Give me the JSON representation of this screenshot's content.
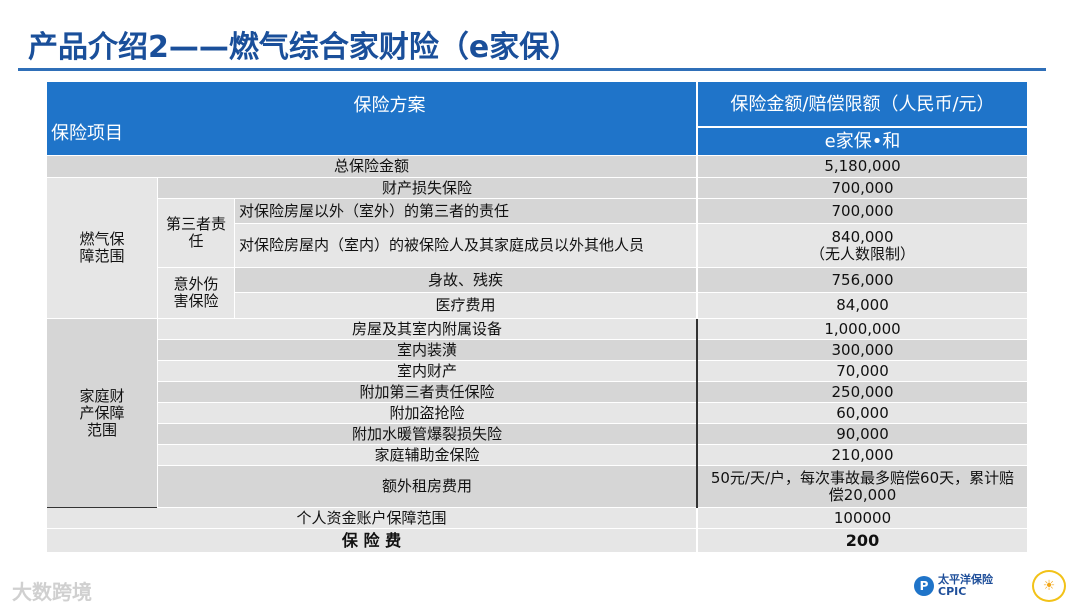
{
  "title": "产品介绍2——燃气综合家财险（e家保）",
  "header": {
    "plan": "保险方案",
    "item": "保险项目",
    "amount": "保险金额/赔偿限额（人民币/元）",
    "product": "e家保•和"
  },
  "total": {
    "label": "总保险金额",
    "value": "5,180,000"
  },
  "gas_section": {
    "label": "燃气保障范围",
    "property_loss": {
      "label": "财产损失保险",
      "value": "700,000"
    },
    "third_party": {
      "label": "第三者责任",
      "outdoor": {
        "label": "对保险房屋以外（室外）的第三者的责任",
        "value": "700,000"
      },
      "indoor": {
        "label": "对保险房屋内（室内）的被保险人及其家庭成员以外其他人员",
        "value": "840,000",
        "note": "（无人数限制）"
      }
    },
    "accident": {
      "label": "意外伤害保险",
      "death": {
        "label": "身故、残疾",
        "value": "756,000"
      },
      "medical": {
        "label": "医疗费用",
        "value": "84,000"
      }
    }
  },
  "home_section": {
    "label": "家庭财产保障范围",
    "rows": [
      {
        "label": "房屋及其室内附属设备",
        "value": "1,000,000"
      },
      {
        "label": "室内装潢",
        "value": "300,000"
      },
      {
        "label": "室内财产",
        "value": "70,000"
      },
      {
        "label": "附加第三者责任保险",
        "value": "250,000"
      },
      {
        "label": "附加盗抢险",
        "value": "60,000"
      },
      {
        "label": "附加水暖管爆裂损失险",
        "value": "90,000"
      },
      {
        "label": "家庭辅助金保险",
        "value": "210,000"
      }
    ],
    "rent": {
      "label": "额外租房费用",
      "value": "50元/天/户，每次事故最多赔偿60天，累计赔偿20,000"
    }
  },
  "personal": {
    "label": "个人资金账户保障范围",
    "value": "100000"
  },
  "premium": {
    "label": "保 险 费",
    "value": "200"
  },
  "watermark": "大数跨境",
  "logo": {
    "name": "太平洋保险",
    "abbr": "CPIC"
  }
}
